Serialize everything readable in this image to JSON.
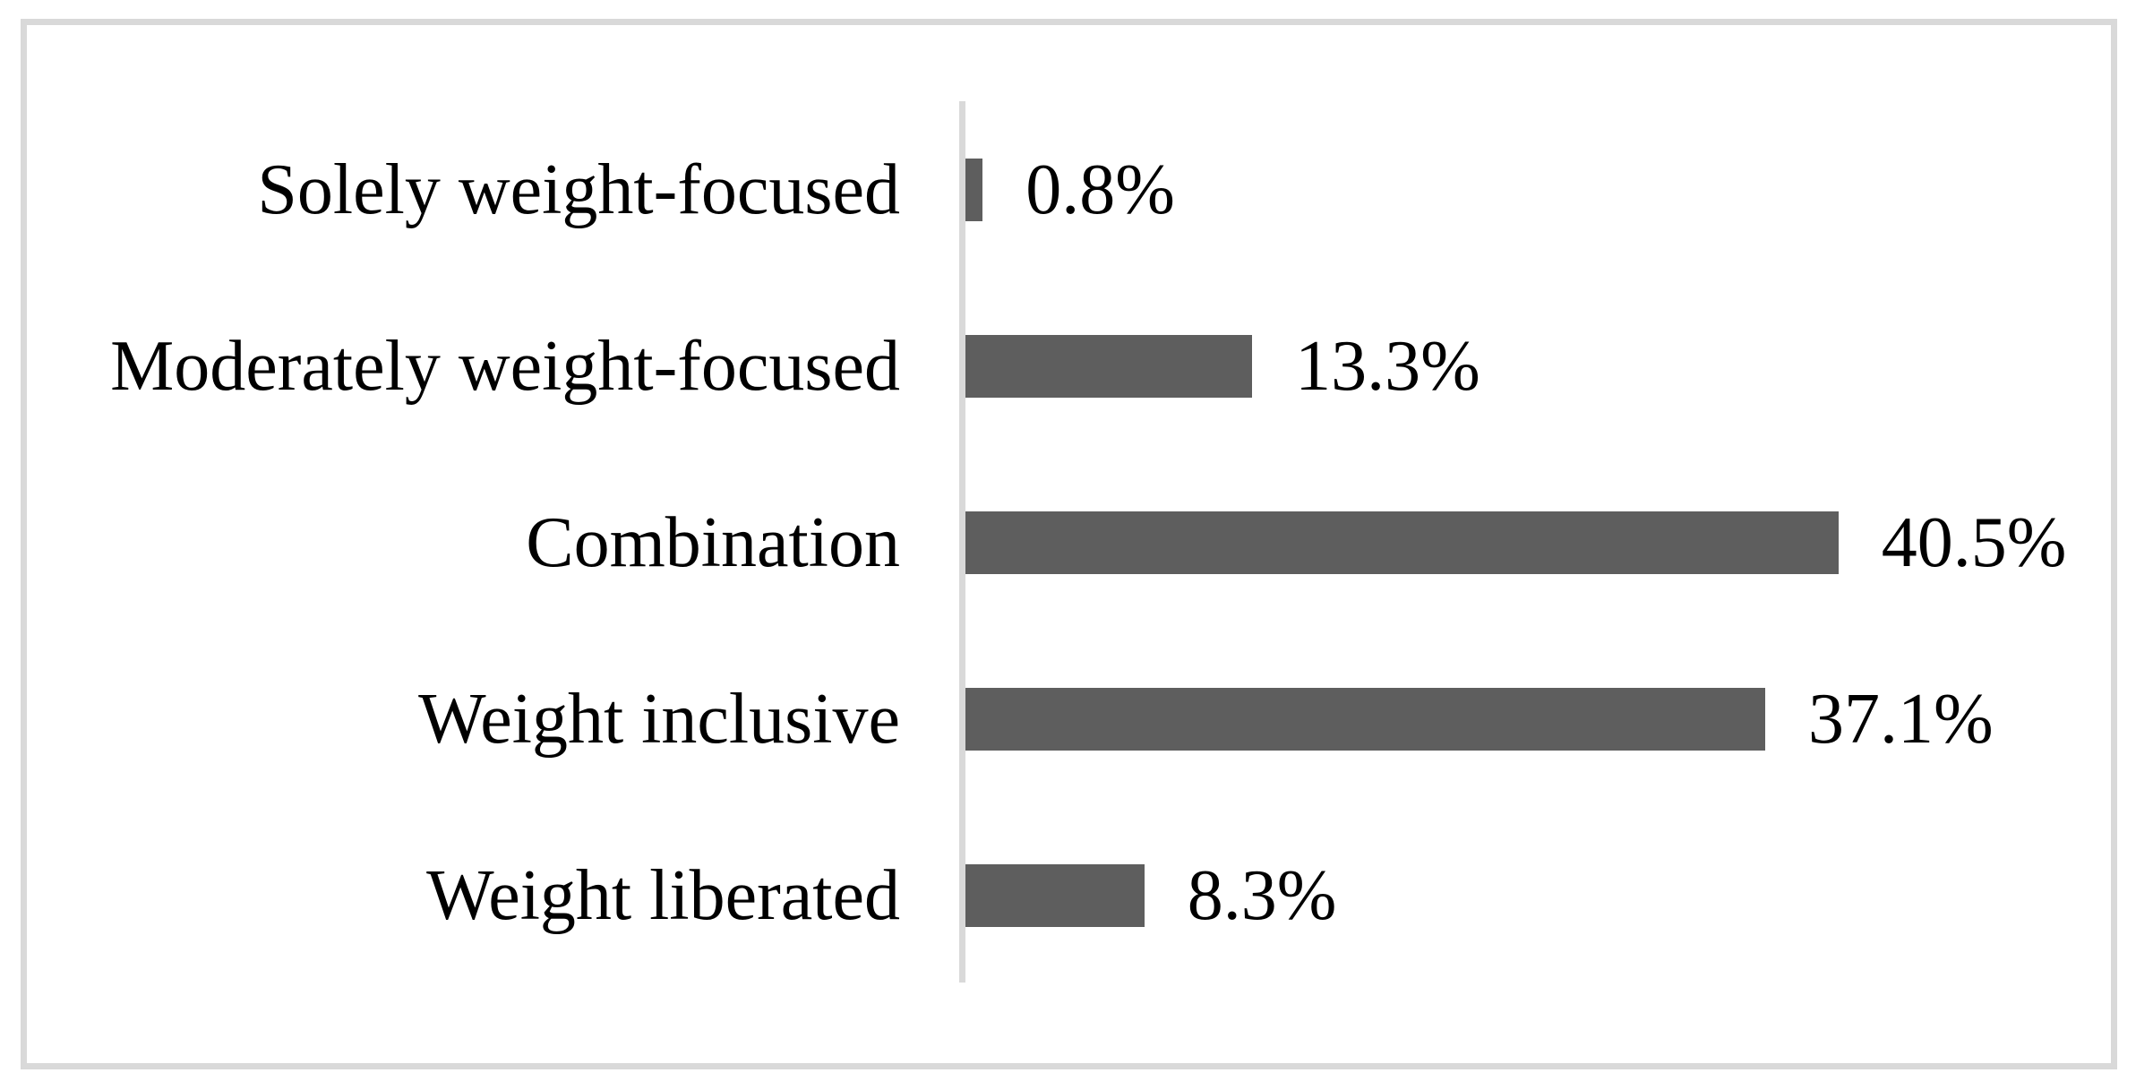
{
  "chart_data": {
    "type": "bar",
    "orientation": "horizontal",
    "title": "",
    "xlabel": "",
    "ylabel": "",
    "categories": [
      "Solely weight-focused",
      "Moderately weight-focused",
      "Combination",
      "Weight inclusive",
      "Weight liberated"
    ],
    "values": [
      0.8,
      13.3,
      40.5,
      37.1,
      8.3
    ],
    "value_labels": [
      "0.8%",
      "13.3%",
      "40.5%",
      "37.1%",
      "8.3%"
    ],
    "xlim": [
      0,
      45
    ],
    "grid": false,
    "legend": null,
    "bar_color": "#5e5e5e",
    "axis_line_color": "#d9d9d9",
    "frame_border_color": "#d9d9d9",
    "text_color": "#000000"
  }
}
